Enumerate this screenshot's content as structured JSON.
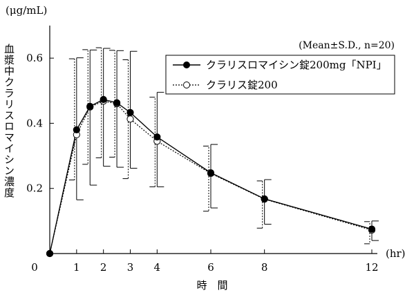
{
  "chart_data": {
    "type": "line",
    "title": "",
    "note": "(Mean±S.D., n=20)",
    "xlabel": "時　間",
    "xunit": "(hr)",
    "ylabel": "血漿中クラリスロマイシン濃度",
    "yunit": "(μg/mL)",
    "xlim": [
      0,
      12
    ],
    "ylim": [
      0,
      0.7
    ],
    "xticks": [
      0,
      1,
      2,
      3,
      4,
      6,
      8,
      12
    ],
    "yticks": [
      0.2,
      0.4,
      0.6
    ],
    "ytick_labels": [
      "0.2",
      "0.4",
      "0.6"
    ],
    "grid": false,
    "legend_position": "top-right",
    "series": [
      {
        "name": "クラリスロマイシン錠200mg「NPI」",
        "marker": "filled-circle",
        "line_style": "solid",
        "x": [
          0,
          1,
          1.5,
          2,
          2.5,
          3,
          4,
          6,
          8,
          12
        ],
        "y": [
          0,
          0.38,
          0.452,
          0.473,
          0.463,
          0.433,
          0.358,
          0.248,
          0.168,
          0.075
        ],
        "err_up": [
          0,
          0.601,
          0.625,
          0.63,
          0.623,
          0.621,
          0.495,
          0.335,
          0.227,
          0.1
        ],
        "err_down": [
          0,
          0.165,
          0.21,
          0.268,
          0.265,
          0.262,
          0.205,
          0.14,
          0.09,
          0.04
        ]
      },
      {
        "name": "クラリス錠200",
        "marker": "open-circle",
        "line_style": "dotted",
        "x": [
          0,
          1,
          1.5,
          2,
          2.5,
          3,
          4,
          6,
          8,
          12
        ],
        "y": [
          0,
          0.365,
          0.45,
          0.468,
          0.46,
          0.413,
          0.345,
          0.246,
          0.167,
          0.072
        ],
        "err_up": [
          0,
          0.598,
          0.626,
          0.632,
          0.624,
          0.595,
          0.48,
          0.33,
          0.223,
          0.098
        ],
        "err_down": [
          0,
          0.226,
          0.274,
          0.294,
          0.296,
          0.23,
          0.205,
          0.13,
          0.078,
          0.03
        ]
      }
    ]
  }
}
